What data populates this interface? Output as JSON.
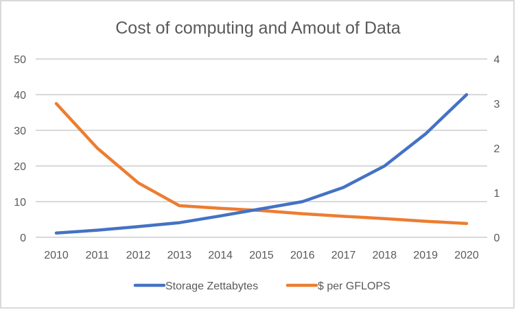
{
  "chart_data": {
    "type": "line",
    "title": "Cost of computing and Amout of Data",
    "xlabel": "",
    "ylabel": "",
    "y2label": "",
    "categories": [
      "2010",
      "2011",
      "2012",
      "2013",
      "2014",
      "2015",
      "2016",
      "2017",
      "2018",
      "2019",
      "2020"
    ],
    "ylim": [
      0,
      50
    ],
    "y_ticks": [
      "0",
      "10",
      "20",
      "30",
      "40",
      "50"
    ],
    "y2lim": [
      0,
      4
    ],
    "y2_ticks": [
      "0",
      "1",
      "2",
      "3",
      "4"
    ],
    "grid": true,
    "legend_position": "bottom",
    "series": [
      {
        "name": "Storage Zettabytes",
        "axis": "left",
        "color": "#4472c4",
        "values": [
          1.2,
          2,
          3,
          4.1,
          6,
          8,
          10,
          14,
          20,
          29,
          40
        ]
      },
      {
        "name": "$ per GFLOPS",
        "axis": "right",
        "color": "#ed7d31",
        "values": [
          3.0,
          2.0,
          1.22,
          0.71,
          0.65,
          0.6,
          0.53,
          0.47,
          0.42,
          0.36,
          0.31
        ]
      }
    ]
  }
}
